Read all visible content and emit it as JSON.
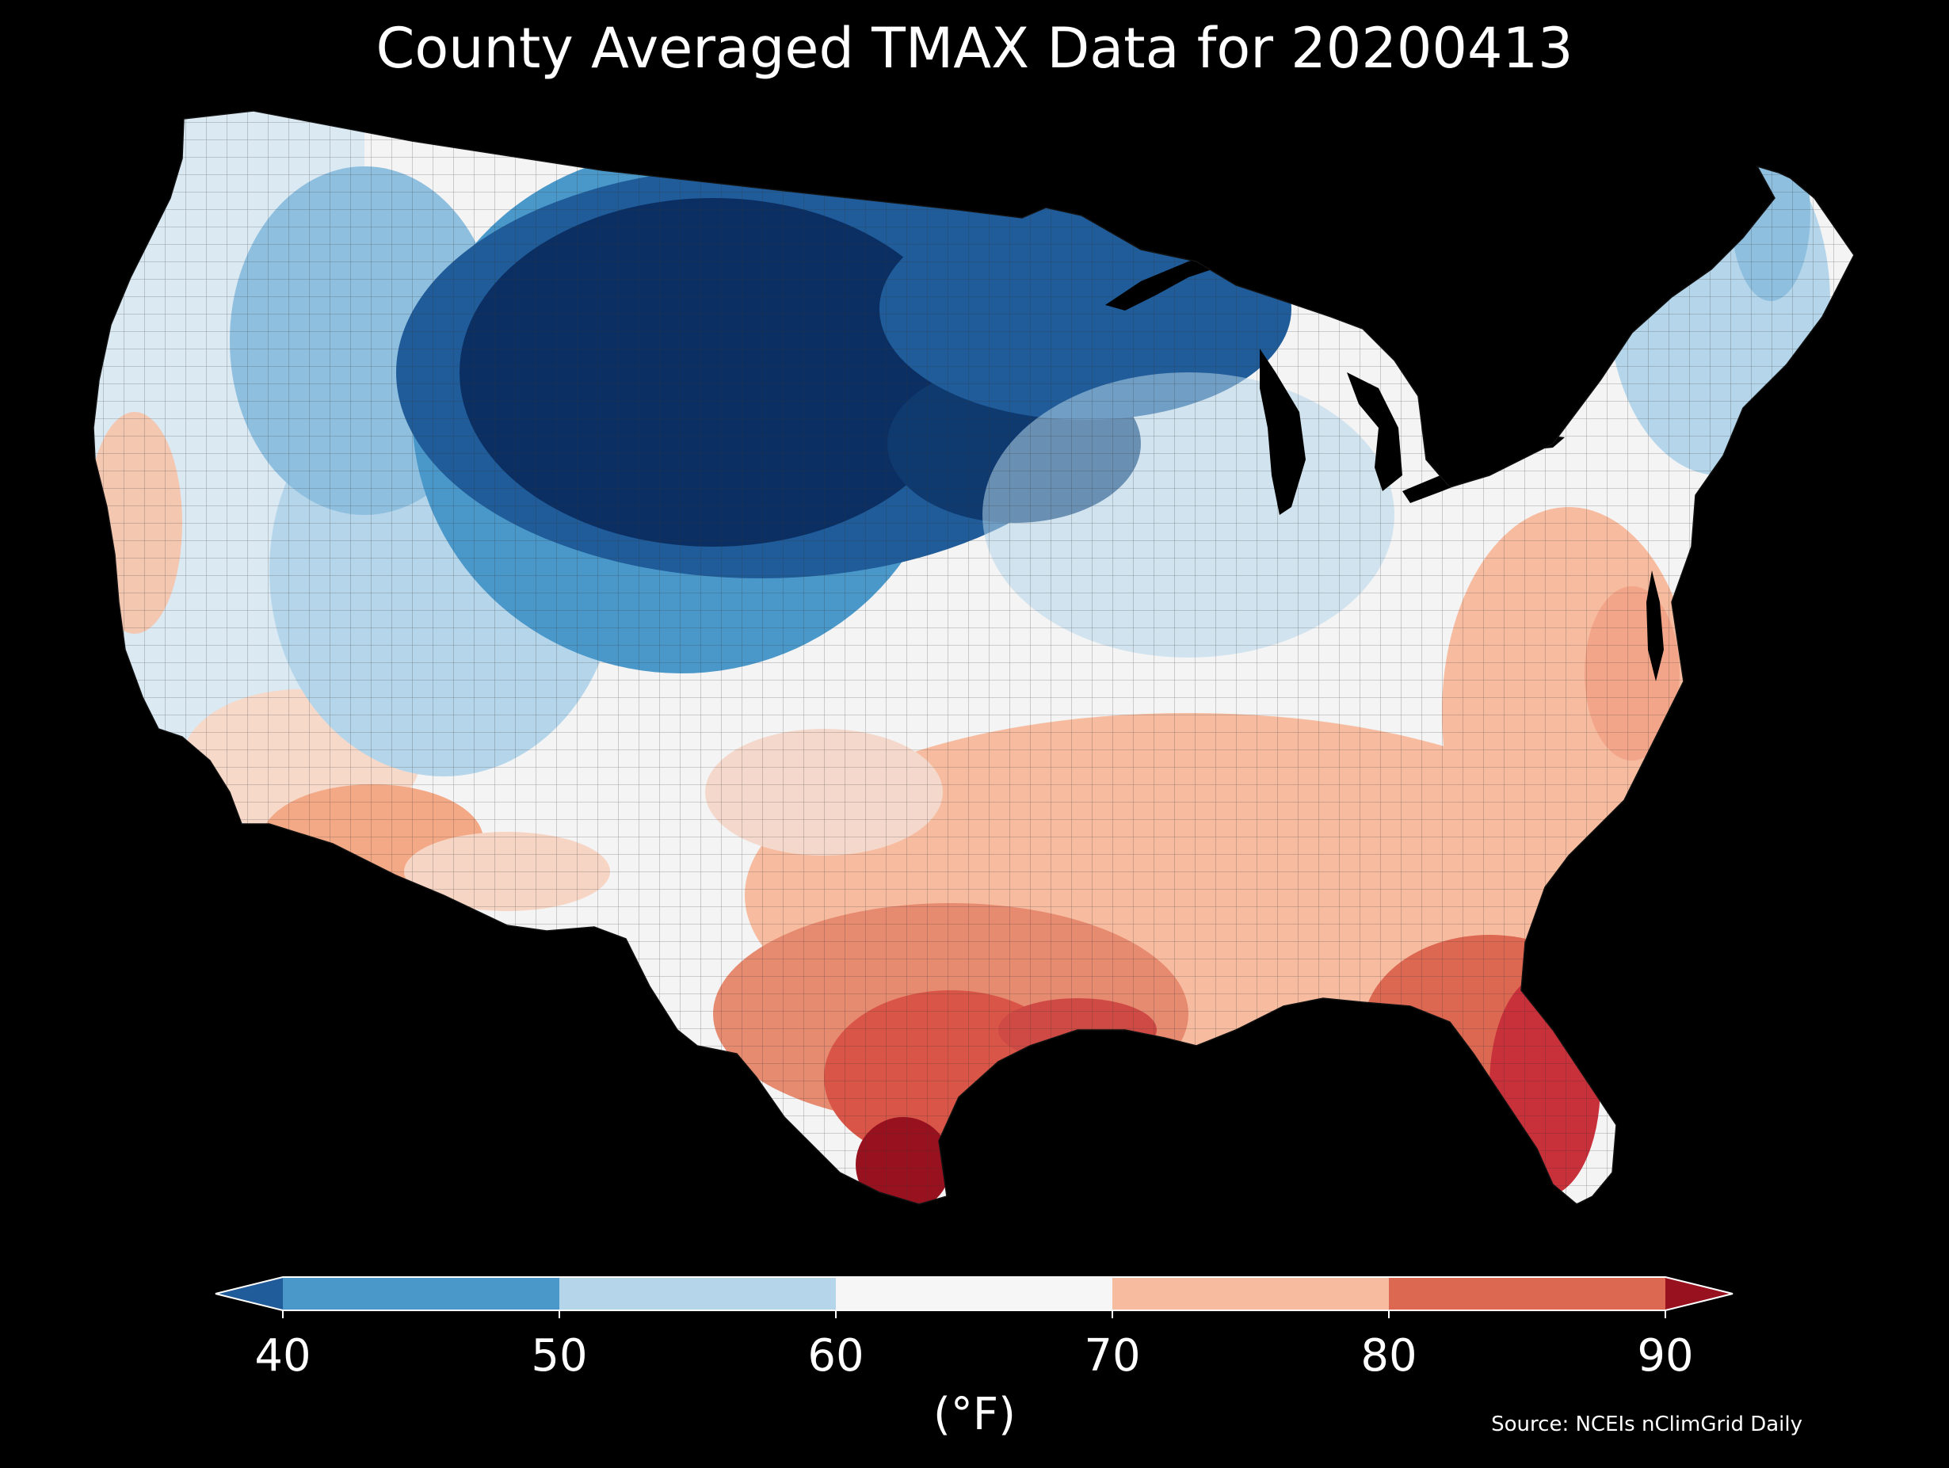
{
  "title": "County Averaged TMAX Data for 20200413",
  "colorbar": {
    "ticks": [
      "40",
      "50",
      "60",
      "70",
      "80",
      "90"
    ],
    "unit": "(°F)",
    "bins": [
      {
        "range": [
          null,
          40
        ],
        "color": "#1f5c99"
      },
      {
        "range": [
          40,
          50
        ],
        "color": "#4a98c9"
      },
      {
        "range": [
          50,
          60
        ],
        "color": "#b5d6ea"
      },
      {
        "range": [
          60,
          70
        ],
        "color": "#f6f6f6"
      },
      {
        "range": [
          70,
          80
        ],
        "color": "#f7bca0"
      },
      {
        "range": [
          80,
          90
        ],
        "color": "#dd6852"
      },
      {
        "range": [
          90,
          null
        ],
        "color": "#98111f"
      }
    ]
  },
  "source": "Source: NCEIs nClimGrid Daily",
  "map_colors": {
    "coldest": "#0b2f63",
    "cold": "#1f5c99",
    "cool": "#4a98c9",
    "mild_cool": "#b5d6ea",
    "neutral": "#f6f6f6",
    "warm": "#f7bca0",
    "hot": "#dd6852",
    "hottest": "#98111f",
    "background": "#000000"
  }
}
